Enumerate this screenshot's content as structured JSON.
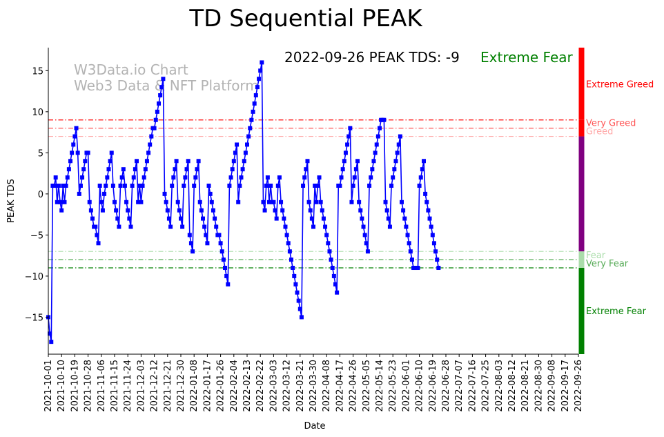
{
  "chart_data": {
    "type": "line",
    "title": "TD Sequential PEAK",
    "xlabel": "Date",
    "ylabel": "PEAK TDS",
    "watermark": [
      "W3Data.io Chart",
      "Web3 Data & NFT Platform"
    ],
    "status": {
      "text": "2022-09-26 PEAK TDS: -9",
      "sentiment": "Extreme Fear",
      "sentiment_color": "#008000"
    },
    "ylim": [
      -19.5,
      17.8
    ],
    "yticks": [
      15,
      10,
      5,
      0,
      -5,
      -10,
      -15
    ],
    "xlim": [
      "2021-10-01",
      "2022-09-26"
    ],
    "xticks": [
      "2021-10-01",
      "2021-10-10",
      "2021-10-19",
      "2021-10-28",
      "2021-11-06",
      "2021-11-15",
      "2021-11-24",
      "2021-12-03",
      "2021-12-12",
      "2021-12-21",
      "2021-12-30",
      "2022-01-08",
      "2022-01-17",
      "2022-01-26",
      "2022-02-04",
      "2022-02-13",
      "2022-02-22",
      "2022-03-03",
      "2022-03-12",
      "2022-03-21",
      "2022-03-30",
      "2022-04-08",
      "2022-04-17",
      "2022-04-26",
      "2022-05-05",
      "2022-05-14",
      "2022-05-23",
      "2022-06-01",
      "2022-06-10",
      "2022-06-19",
      "2022-06-28",
      "2022-07-07",
      "2022-07-16",
      "2022-07-25",
      "2022-08-03",
      "2022-08-12",
      "2022-08-21",
      "2022-08-30",
      "2022-09-08",
      "2022-09-17",
      "2022-09-26"
    ],
    "thresholds": [
      {
        "name": "Extreme Greed",
        "value": 9,
        "color": "#ff0000"
      },
      {
        "name": "Very Greed",
        "value": 8,
        "color": "#ff5555"
      },
      {
        "name": "Greed",
        "value": 7,
        "color": "#ffaaaa"
      },
      {
        "name": "Fear",
        "value": -7,
        "color": "#aaddaa"
      },
      {
        "name": "Very Fear",
        "value": -8,
        "color": "#55aa55"
      },
      {
        "name": "Extreme Fear",
        "value": -9,
        "color": "#008000"
      }
    ],
    "side_bar": [
      {
        "from": 9,
        "to": 17.8,
        "color": "#ff0000"
      },
      {
        "from": 7,
        "to": 9,
        "color": "#ff0000"
      },
      {
        "from": -7,
        "to": 7,
        "color": "#800080"
      },
      {
        "from": -9,
        "to": -7,
        "color": "#aaddaa"
      },
      {
        "from": -19.5,
        "to": -9,
        "color": "#008000"
      }
    ],
    "side_labels": [
      {
        "text": "Extreme Greed",
        "value": 13.3,
        "color": "#ff0000"
      },
      {
        "text": "Very Greed",
        "value": 8.6,
        "color": "#ff5555"
      },
      {
        "text": "Greed",
        "value": 7.6,
        "color": "#ffaaaa"
      },
      {
        "text": "Fear",
        "value": -7.5,
        "color": "#aaddaa"
      },
      {
        "text": "Very Fear",
        "value": -8.5,
        "color": "#55aa55"
      },
      {
        "text": "Extreme Fear",
        "value": -14.3,
        "color": "#008000"
      }
    ],
    "series": [
      {
        "color": "#0000ff",
        "start_date": "2021-10-01",
        "step_days": 1,
        "values": [
          -15,
          -17,
          -18,
          1,
          1,
          2,
          -1,
          1,
          -1,
          -2,
          1,
          -1,
          1,
          2,
          3,
          4,
          5,
          6,
          7,
          8,
          5,
          0,
          1,
          2,
          3,
          4,
          5,
          5,
          -1,
          -2,
          -3,
          -4,
          -4,
          -5,
          -6,
          1,
          -1,
          -2,
          0,
          1,
          2,
          3,
          4,
          5,
          1,
          -1,
          -2,
          -3,
          -4,
          1,
          2,
          3,
          1,
          -1,
          -2,
          -3,
          -4,
          1,
          2,
          3,
          4,
          -1,
          1,
          -1,
          1,
          2,
          3,
          4,
          5,
          6,
          7,
          8,
          8,
          9,
          10,
          11,
          12,
          13,
          14,
          0,
          -1,
          -2,
          -3,
          -4,
          1,
          2,
          3,
          4,
          -1,
          -2,
          -3,
          -4,
          1,
          2,
          3,
          4,
          -5,
          -6,
          -7,
          1,
          2,
          3,
          4,
          -1,
          -2,
          -3,
          -4,
          -5,
          -6,
          1,
          0,
          -1,
          -2,
          -3,
          -4,
          -5,
          -5,
          -6,
          -7,
          -8,
          -9,
          -10,
          -11,
          1,
          2,
          3,
          4,
          5,
          6,
          -1,
          1,
          2,
          3,
          4,
          5,
          6,
          7,
          8,
          9,
          10,
          11,
          12,
          13,
          14,
          15,
          16,
          -1,
          -2,
          1,
          2,
          -1,
          1,
          -1,
          -1,
          -2,
          -3,
          1,
          2,
          -1,
          -2,
          -3,
          -4,
          -5,
          -6,
          -7,
          -8,
          -9,
          -10,
          -11,
          -12,
          -13,
          -14,
          -15,
          1,
          2,
          3,
          4,
          -1,
          -2,
          -3,
          -4,
          1,
          -1,
          1,
          2,
          -1,
          -2,
          -3,
          -4,
          -5,
          -6,
          -7,
          -8,
          -9,
          -10,
          -11,
          -12,
          1,
          1,
          2,
          3,
          4,
          5,
          6,
          7,
          8,
          -1,
          1,
          2,
          3,
          4,
          -1,
          -2,
          -3,
          -4,
          -5,
          -6,
          -7,
          1,
          2,
          3,
          4,
          5,
          6,
          7,
          8,
          9,
          9,
          9,
          -1,
          -2,
          -3,
          -4,
          1,
          2,
          3,
          4,
          5,
          6,
          7,
          -1,
          -2,
          -3,
          -4,
          -5,
          -6,
          -7,
          -8,
          -9,
          -9,
          -9,
          -9,
          1,
          2,
          3,
          4,
          0,
          -1,
          -2,
          -3,
          -4,
          -5,
          -6,
          -7,
          -8,
          -9
        ]
      }
    ]
  }
}
